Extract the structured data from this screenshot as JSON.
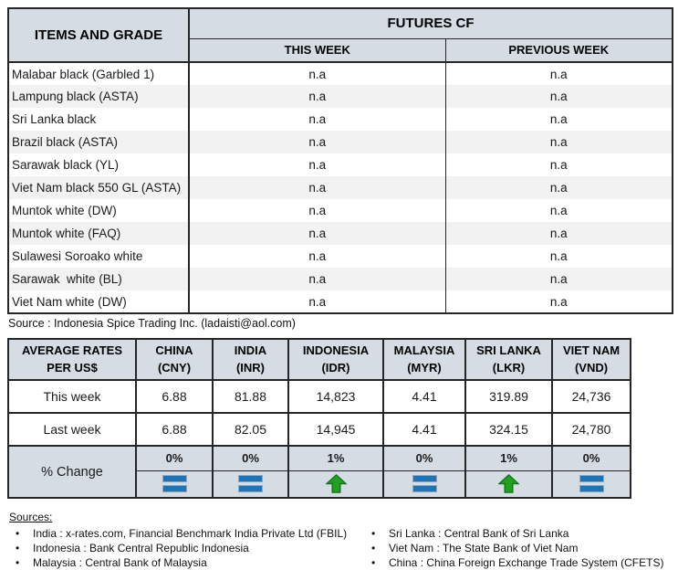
{
  "futures_table": {
    "items_header": "ITEMS AND GRADE",
    "group_header": "FUTURES CF",
    "col_headers": [
      "THIS WEEK",
      "PREVIOUS WEEK"
    ],
    "rows": [
      {
        "item": "Malabar black (Garbled 1)",
        "this_week": "n.a",
        "previous_week": "n.a"
      },
      {
        "item": "Lampung black (ASTA)",
        "this_week": "n.a",
        "previous_week": "n.a"
      },
      {
        "item": "Sri Lanka black",
        "this_week": "n.a",
        "previous_week": "n.a"
      },
      {
        "item": "Brazil black (ASTA)",
        "this_week": "n.a",
        "previous_week": "n.a"
      },
      {
        "item": "Sarawak black (YL)",
        "this_week": "n.a",
        "previous_week": "n.a"
      },
      {
        "item": "Viet Nam black 550 GL (ASTA)",
        "this_week": "n.a",
        "previous_week": "n.a"
      },
      {
        "item": "Muntok white (DW)",
        "this_week": "n.a",
        "previous_week": "n.a"
      },
      {
        "item": "Muntok white (FAQ)",
        "this_week": "n.a",
        "previous_week": "n.a"
      },
      {
        "item": "Sulawesi Soroako white",
        "this_week": "n.a",
        "previous_week": "n.a"
      },
      {
        "item": "Sarawak  white (BL)",
        "this_week": "n.a",
        "previous_week": "n.a"
      },
      {
        "item": "Viet Nam white (DW)",
        "this_week": "n.a",
        "previous_week": "n.a"
      }
    ]
  },
  "source_note": "Source : Indonesia Spice Trading Inc. (ladaisti@aol.com)",
  "rates_table": {
    "label_header_line1": "AVERAGE RATES",
    "label_header_line2": "PER US$",
    "row_labels": {
      "this_week": "This week",
      "last_week": "Last week",
      "pct_change": "% Change"
    },
    "columns": [
      {
        "country": "CHINA",
        "currency": "(CNY)",
        "this_week": "6.88",
        "last_week": "6.88",
        "pct_change": "0%",
        "trend": "equal"
      },
      {
        "country": "INDIA",
        "currency": "(INR)",
        "this_week": "81.88",
        "last_week": "82.05",
        "pct_change": "0%",
        "trend": "equal"
      },
      {
        "country": "INDONESIA",
        "currency": "(IDR)",
        "this_week": "14,823",
        "last_week": "14,945",
        "pct_change": "1%",
        "trend": "up"
      },
      {
        "country": "MALAYSIA",
        "currency": "(MYR)",
        "this_week": "4.41",
        "last_week": "4.41",
        "pct_change": "0%",
        "trend": "equal"
      },
      {
        "country": "SRI LANKA",
        "currency": "(LKR)",
        "this_week": "319.89",
        "last_week": "324.15",
        "pct_change": "1%",
        "trend": "up"
      },
      {
        "country": "VIET NAM",
        "currency": "(VND)",
        "this_week": "24,736",
        "last_week": "24,780",
        "pct_change": "0%",
        "trend": "equal"
      }
    ]
  },
  "sources": {
    "heading": "Sources:",
    "left": [
      "India : x-rates.com, Financial Benchmark India Private Ltd (FBIL)",
      "Indonesia : Bank Central Republic Indonesia",
      "Malaysia : Central Bank of Malaysia"
    ],
    "right": [
      "Sri Lanka : Central Bank of Sri Lanka",
      "Viet Nam : The State Bank of Viet Nam",
      "China : China Foreign Exchange Trade System (CFETS)"
    ]
  },
  "colors": {
    "header_bg": "#d6dce4",
    "stripe_bg": "#f2f2f2",
    "border": "#262626",
    "equal_icon": "#1b75bc",
    "up_icon": "#22a121"
  }
}
